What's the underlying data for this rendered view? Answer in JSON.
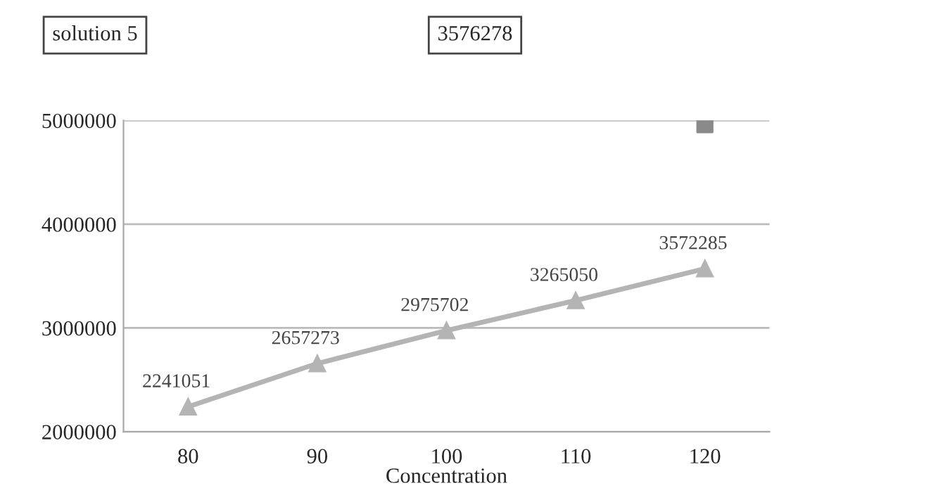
{
  "chart_data": {
    "type": "line",
    "xlabel": "Concentration",
    "annotations": [
      "solution 5",
      "3576278"
    ],
    "categories": [
      "80",
      "90",
      "100",
      "110",
      "120"
    ],
    "series": [
      {
        "color": "#b4b4b4",
        "marker": "triangle",
        "values": [
          2241051,
          2657273,
          2975702,
          3265050,
          3572285
        ],
        "value_labels": [
          "2241051",
          "2657273",
          "2975702",
          "3265050",
          "3572285"
        ]
      },
      {
        "type": "scatter",
        "color": "#8a8a8a",
        "marker": "square",
        "values": [
          null,
          null,
          null,
          null,
          4960000
        ]
      }
    ],
    "ylim": [
      2000000,
      5000000
    ],
    "yticks": [
      2000000,
      3000000,
      4000000,
      5000000
    ],
    "grid": "y",
    "legend": false
  }
}
